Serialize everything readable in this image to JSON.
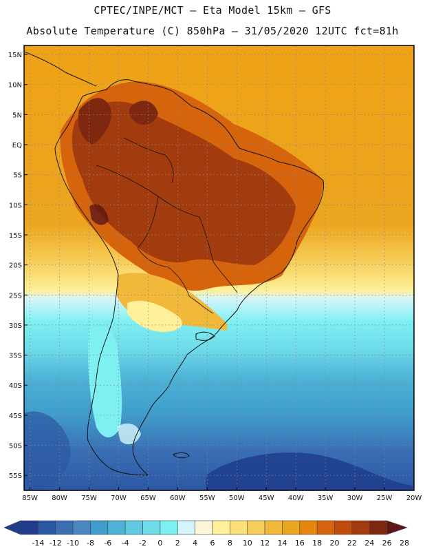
{
  "header": {
    "title_line1": "CPTEC/INPE/MCT –  Eta Model 15km – GFS",
    "title_line2": "Absolute Temperature (C) 850hPa – 31/05/2020 12UTC fct=81h"
  },
  "map": {
    "lat_labels": [
      "15N",
      "10N",
      "5N",
      "EQ",
      "5S",
      "10S",
      "15S",
      "20S",
      "25S",
      "30S",
      "35S",
      "40S",
      "45S",
      "50S",
      "55S"
    ],
    "lon_labels": [
      "85W",
      "80W",
      "75W",
      "70W",
      "65W",
      "60W",
      "55W",
      "50W",
      "45W",
      "40W",
      "35W",
      "30W",
      "25W",
      "20W"
    ],
    "lat_range": [
      -57.5,
      16.5
    ],
    "lon_range": [
      -86,
      -20
    ]
  },
  "colorbar": {
    "labels": [
      "-14",
      "-12",
      "-10",
      "-8",
      "-6",
      "-4",
      "-2",
      "0",
      "2",
      "4",
      "6",
      "8",
      "10",
      "12",
      "14",
      "16",
      "18",
      "20",
      "22",
      "24",
      "26",
      "28"
    ],
    "colors": [
      "#1f3d8c",
      "#2b57a3",
      "#3a6fb4",
      "#4a86c2",
      "#3f9ccb",
      "#4db2d6",
      "#5fc9e0",
      "#6fdcea",
      "#7ff0f2",
      "#d4f5fb",
      "#fff5d8",
      "#fff099",
      "#fbe07a",
      "#f6cd5a",
      "#f1b83a",
      "#eca51f",
      "#e6860f",
      "#d6640c",
      "#c04b0c",
      "#a23b0e",
      "#7f2810",
      "#5e1617"
    ]
  }
}
